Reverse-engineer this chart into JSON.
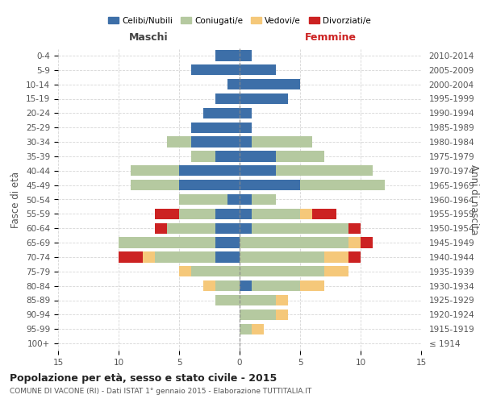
{
  "age_groups": [
    "100+",
    "95-99",
    "90-94",
    "85-89",
    "80-84",
    "75-79",
    "70-74",
    "65-69",
    "60-64",
    "55-59",
    "50-54",
    "45-49",
    "40-44",
    "35-39",
    "30-34",
    "25-29",
    "20-24",
    "15-19",
    "10-14",
    "5-9",
    "0-4"
  ],
  "birth_years": [
    "≤ 1914",
    "1915-1919",
    "1920-1924",
    "1925-1929",
    "1930-1934",
    "1935-1939",
    "1940-1944",
    "1945-1949",
    "1950-1954",
    "1955-1959",
    "1960-1964",
    "1965-1969",
    "1970-1974",
    "1975-1979",
    "1980-1984",
    "1985-1989",
    "1990-1994",
    "1995-1999",
    "2000-2004",
    "2005-2009",
    "2010-2014"
  ],
  "colors": {
    "celibi": "#3d6fa8",
    "coniugati": "#b5c9a0",
    "vedovi": "#f5c87a",
    "divorziati": "#cc2222"
  },
  "maschi": {
    "celibi": [
      0,
      0,
      0,
      0,
      0,
      0,
      2,
      2,
      2,
      2,
      1,
      5,
      5,
      2,
      4,
      4,
      3,
      2,
      1,
      4,
      2
    ],
    "coniugati": [
      0,
      0,
      0,
      2,
      2,
      4,
      5,
      8,
      4,
      3,
      4,
      4,
      4,
      2,
      2,
      0,
      0,
      0,
      0,
      0,
      0
    ],
    "vedovi": [
      0,
      0,
      0,
      0,
      1,
      1,
      1,
      0,
      0,
      0,
      0,
      0,
      0,
      0,
      0,
      0,
      0,
      0,
      0,
      0,
      0
    ],
    "divorziati": [
      0,
      0,
      0,
      0,
      0,
      0,
      2,
      0,
      1,
      2,
      0,
      0,
      0,
      0,
      0,
      0,
      0,
      0,
      0,
      0,
      0
    ]
  },
  "femmine": {
    "celibi": [
      0,
      0,
      0,
      0,
      1,
      0,
      0,
      0,
      1,
      1,
      1,
      5,
      3,
      3,
      1,
      1,
      1,
      4,
      5,
      3,
      1
    ],
    "coniugati": [
      0,
      1,
      3,
      3,
      4,
      7,
      7,
      9,
      8,
      4,
      2,
      7,
      8,
      4,
      5,
      0,
      0,
      0,
      0,
      0,
      0
    ],
    "vedovi": [
      0,
      1,
      1,
      1,
      2,
      2,
      2,
      1,
      0,
      1,
      0,
      0,
      0,
      0,
      0,
      0,
      0,
      0,
      0,
      0,
      0
    ],
    "divorziati": [
      0,
      0,
      0,
      0,
      0,
      0,
      1,
      1,
      1,
      2,
      0,
      0,
      0,
      0,
      0,
      0,
      0,
      0,
      0,
      0,
      0
    ]
  },
  "xlim": 15,
  "title": "Popolazione per età, sesso e stato civile - 2015",
  "subtitle": "COMUNE DI VACONE (RI) - Dati ISTAT 1° gennaio 2015 - Elaborazione TUTTITALIA.IT",
  "ylabel_left": "Fasce di età",
  "ylabel_right": "Anni di nascita",
  "label_maschi": "Maschi",
  "label_femmine": "Femmine",
  "legend_labels": [
    "Celibi/Nubili",
    "Coniugati/e",
    "Vedovi/e",
    "Divorziati/e"
  ],
  "bg_color": "#ffffff",
  "grid_color": "#cccccc"
}
